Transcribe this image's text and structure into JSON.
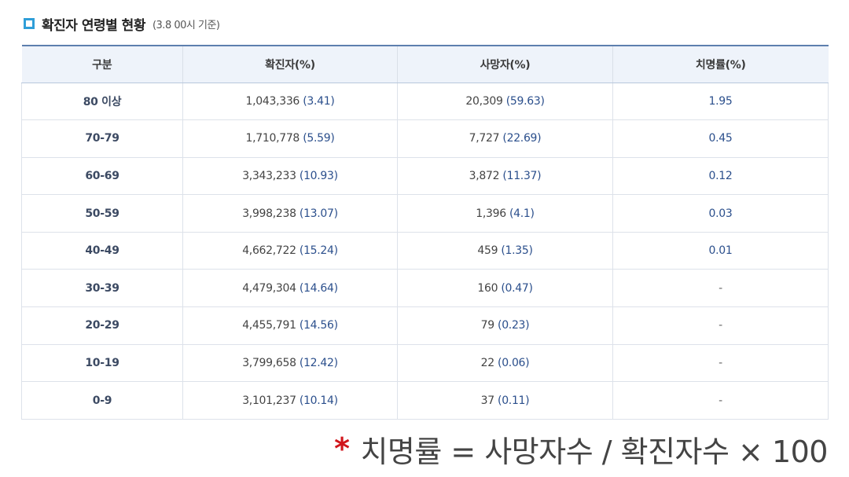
{
  "header": {
    "title": "확진자 연령별 현황",
    "note": "(3.8 00시 기준)"
  },
  "table": {
    "columns": [
      "구분",
      "확진자(%)",
      "사망자(%)",
      "치명률(%)"
    ],
    "rows": [
      {
        "group": "80 이상",
        "confirmed": "1,043,336",
        "confirmed_pct": "(3.41)",
        "deaths": "20,309",
        "deaths_pct": "(59.63)",
        "fatality": "1.95"
      },
      {
        "group": "70-79",
        "confirmed": "1,710,778",
        "confirmed_pct": "(5.59)",
        "deaths": "7,727",
        "deaths_pct": "(22.69)",
        "fatality": "0.45"
      },
      {
        "group": "60-69",
        "confirmed": "3,343,233",
        "confirmed_pct": "(10.93)",
        "deaths": "3,872",
        "deaths_pct": "(11.37)",
        "fatality": "0.12"
      },
      {
        "group": "50-59",
        "confirmed": "3,998,238",
        "confirmed_pct": "(13.07)",
        "deaths": "1,396",
        "deaths_pct": "(4.1)",
        "fatality": "0.03"
      },
      {
        "group": "40-49",
        "confirmed": "4,662,722",
        "confirmed_pct": "(15.24)",
        "deaths": "459",
        "deaths_pct": "(1.35)",
        "fatality": "0.01"
      },
      {
        "group": "30-39",
        "confirmed": "4,479,304",
        "confirmed_pct": "(14.64)",
        "deaths": "160",
        "deaths_pct": "(0.47)",
        "fatality": "-"
      },
      {
        "group": "20-29",
        "confirmed": "4,455,791",
        "confirmed_pct": "(14.56)",
        "deaths": "79",
        "deaths_pct": "(0.23)",
        "fatality": "-"
      },
      {
        "group": "10-19",
        "confirmed": "3,799,658",
        "confirmed_pct": "(12.42)",
        "deaths": "22",
        "deaths_pct": "(0.06)",
        "fatality": "-"
      },
      {
        "group": "0-9",
        "confirmed": "3,101,237",
        "confirmed_pct": "(10.14)",
        "deaths": "37",
        "deaths_pct": "(0.11)",
        "fatality": "-"
      }
    ]
  },
  "footnote": {
    "asterisk": "*",
    "text": "치명률 = 사망자수 / 확진자수 × 100"
  },
  "colors": {
    "accent": "#2f9ed8",
    "header_border": "#5d7fae",
    "header_bg": "#eef3fa",
    "pct_text": "#2b4f8c",
    "asterisk": "#d1161c"
  },
  "icons": {
    "title_icon": "square-bullet-icon"
  }
}
